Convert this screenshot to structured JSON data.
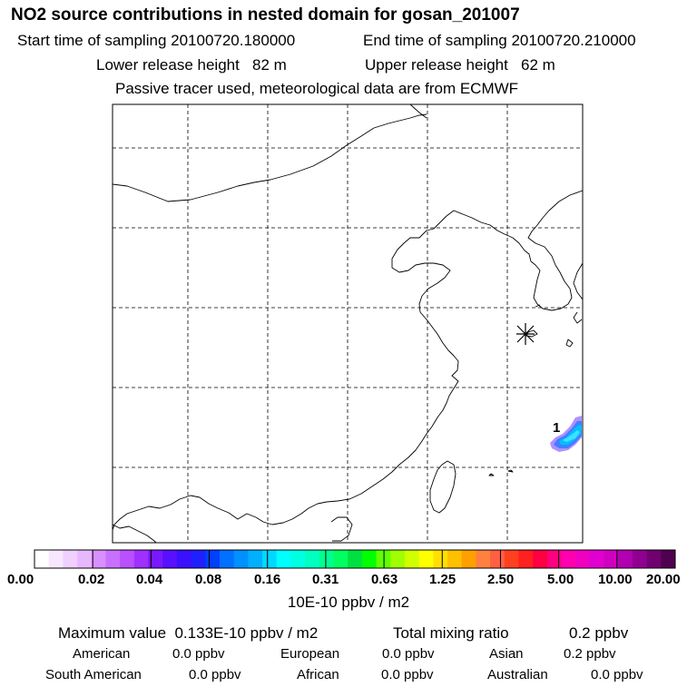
{
  "header": {
    "title": "NO2 source contributions in nested domain for gosan_201007",
    "start_label": "Start time of sampling 20100720.180000",
    "end_label": "End time of sampling 20100720.210000",
    "lower_label": "Lower release height   82 m",
    "upper_label": "Upper release height   62 m",
    "tracer_note": "Passive tracer used, meteorological data are from ECMWF"
  },
  "map": {
    "contour_label": "1",
    "station_marker": "station-star-icon",
    "plume_color": "#5080ff"
  },
  "colorbar": {
    "colors": [
      "#ffffff",
      "#f8e8ff",
      "#f0d0ff",
      "#e8b8ff",
      "#d890ff",
      "#c870ff",
      "#b850ff",
      "#a030ff",
      "#7818ff",
      "#5810ff",
      "#3a10ff",
      "#2020ff",
      "#0040ff",
      "#0070ff",
      "#0090ff",
      "#00b0ff",
      "#00d8ff",
      "#00ffff",
      "#00ffe0",
      "#00ffc0",
      "#00ff90",
      "#00ff60",
      "#00e040",
      "#00ff00",
      "#60ff00",
      "#a0ff00",
      "#d0ff00",
      "#ffff00",
      "#ffe000",
      "#ffc000",
      "#ffa000",
      "#ff8040",
      "#ff6040",
      "#ff4020",
      "#ff2020",
      "#ff0040",
      "#ff0080",
      "#ff00b0",
      "#f000c0",
      "#e000d0",
      "#d000c0",
      "#b000b0",
      "#900090",
      "#700070",
      "#500050"
    ],
    "labels": [
      "0.00",
      "0.02",
      "0.04",
      "0.08",
      "0.16",
      "0.31",
      "0.63",
      "1.25",
      "2.50",
      "5.00",
      "10.00",
      "20.00"
    ],
    "units": "10E-10 ppbv / m2"
  },
  "stats": {
    "max_label": "Maximum value  0.133E-10 ppbv / m2",
    "total_label": "Total mixing ratio",
    "total_value": "0.2 ppbv",
    "american_label": "American",
    "american_value": "0.0 ppbv",
    "european_label": "European",
    "european_value": "0.0 ppbv",
    "asian_label": "Asian",
    "asian_value": "0.2 ppbv",
    "south_american_label": "South American",
    "south_american_value": "0.0 ppbv",
    "african_label": "African",
    "african_value": "0.0 ppbv",
    "australian_label": "Australian",
    "australian_value": "0.0 ppbv"
  }
}
